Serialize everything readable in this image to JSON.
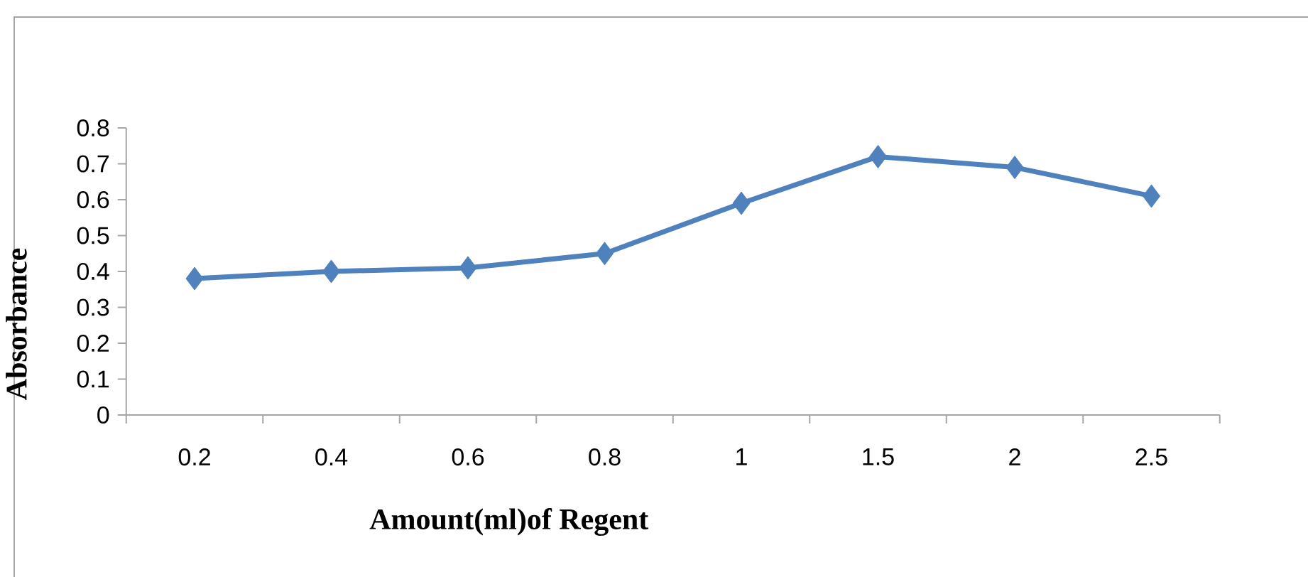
{
  "chart_data": {
    "type": "line",
    "xlabel": "Amount(ml)of Regent",
    "ylabel": "Absorbance",
    "categories": [
      "0.2",
      "0.4",
      "0.6",
      "0.8",
      "1",
      "1.5",
      "2",
      "2.5"
    ],
    "series": [
      {
        "color": "#4f81bd",
        "values": [
          0.38,
          0.4,
          0.41,
          0.45,
          0.59,
          0.72,
          0.69,
          0.61
        ]
      }
    ],
    "ylim": [
      0,
      0.8
    ],
    "yticks": [
      0,
      0.1,
      0.2,
      0.3,
      0.4,
      0.5,
      0.6,
      0.7,
      0.8
    ],
    "grid": false,
    "marker": "diamond",
    "line_style": "solid"
  }
}
